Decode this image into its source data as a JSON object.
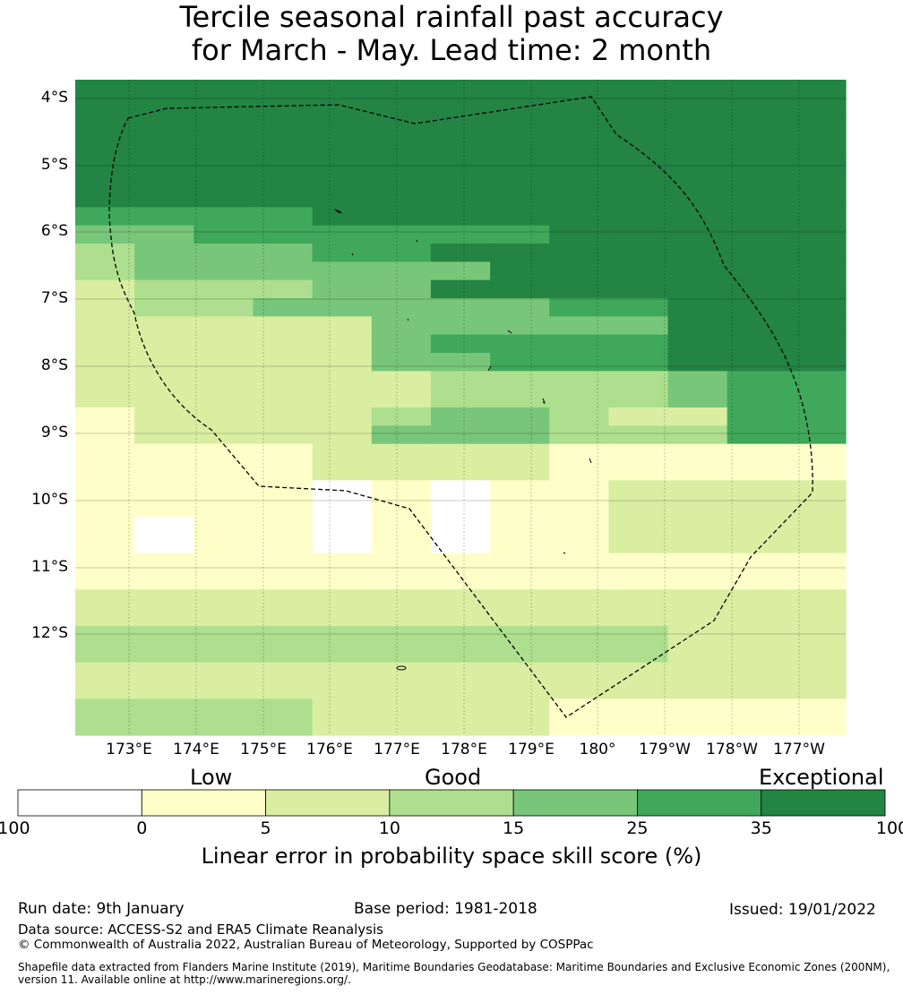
{
  "title": {
    "line1": "Tercile seasonal rainfall past accuracy",
    "line2": "for March - May. Lead time: 2 month"
  },
  "colors": {
    "c0": "#ffffff",
    "c1": "#fefec9",
    "c2": "#d9eea1",
    "c3": "#addf8e",
    "c4": "#78c679",
    "c5": "#3fa85a",
    "c6": "#238443"
  },
  "map": {
    "lon_range": [
      172.2,
      183.7
    ],
    "lat_range": [
      -13.75,
      -3.8
    ],
    "lat_labels": [
      "4°S",
      "5°S",
      "6°S",
      "7°S",
      "8°S",
      "9°S",
      "10°S",
      "11°S",
      "12°S"
    ],
    "lon_labels": [
      "173°E",
      "174°E",
      "175°E",
      "176°E",
      "177°E",
      "178°E",
      "179°E",
      "180°",
      "179°W",
      "178°W",
      "177°W"
    ],
    "grid_rows": [
      "6666666666666",
      "6666666666666",
      "6666666666666",
      "6666666666666",
      "6666666666666",
      "6666666666666",
      "6666666666666",
      "5555666666666",
      "4455555566666",
      "3444556666666",
      "3444444666666",
      "2333446666666",
      "2334444455666",
      "2222244444666",
      "2222245555666",
      "2222244555666",
      "2222223333455",
      "2222223333455",
      "1222234432255",
      "1222244433355",
      "1111222211111",
      "1111222211111",
      "1111010112222",
      "1111010112222",
      "1011010112222",
      "1011010112222",
      "1111111111111",
      "1111111111111",
      "2222222222222",
      "2222222222222",
      "3333333333222",
      "3333333333222",
      "2222222222222",
      "2222222222222",
      "3333222211111",
      "3333222211111"
    ]
  },
  "colorbar": {
    "categories": [
      "Low",
      "Good",
      "Exceptional"
    ],
    "ticks": [
      "-100",
      "0",
      "5",
      "10",
      "15",
      "25",
      "35",
      "100"
    ],
    "title": "Linear error in probability space skill score (%)"
  },
  "footer": {
    "run_date": "Run date: 9th January",
    "base_period": "Base period: 1981-2018",
    "issued": "Issued: 19/01/2022",
    "data_source": "Data source: ACCESS-S2 and ERA5 Climate Reanalysis",
    "copyright": "© Commonwealth of Australia 2022, Australian Bureau of Meteorology, Supported by COSPPac",
    "shapefile_line1": "Shapefile data extracted from Flanders Marine Institute (2019), Maritime Boundaries Geodatabase: Maritime Boundaries and Exclusive Economic Zones (200NM),",
    "shapefile_line2": "version 11. Available online at http://www.marineregions.org/."
  }
}
